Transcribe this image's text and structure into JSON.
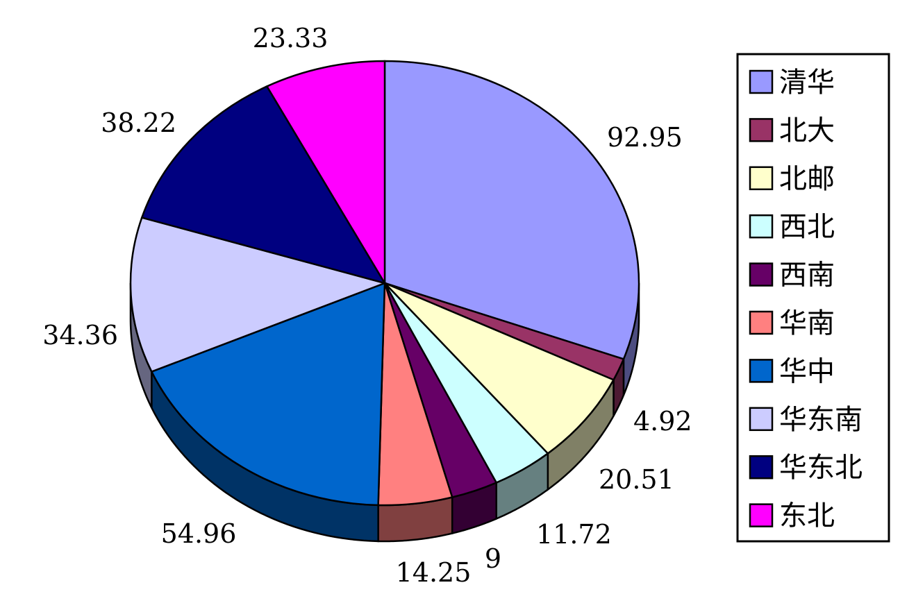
{
  "chart_data": {
    "type": "pie",
    "three_d": true,
    "legend_position": "right",
    "categories": [
      "清华",
      "北大",
      "北邮",
      "西北",
      "西南",
      "华南",
      "华中",
      "华东南",
      "华东北",
      "东北"
    ],
    "values": [
      92.95,
      4.92,
      20.51,
      11.72,
      9,
      14.25,
      54.96,
      34.36,
      38.22,
      23.33
    ],
    "value_labels": [
      "92.95",
      "4.92",
      "20.51",
      "11.72",
      "9",
      "14.25",
      "54.96",
      "34.36",
      "38.22",
      "23.33"
    ],
    "colors": [
      "#9999FF",
      "#993366",
      "#FFFFCC",
      "#CCFFFF",
      "#660066",
      "#FF8080",
      "#0066CC",
      "#CCCCFF",
      "#000080",
      "#FF00FF"
    ]
  }
}
